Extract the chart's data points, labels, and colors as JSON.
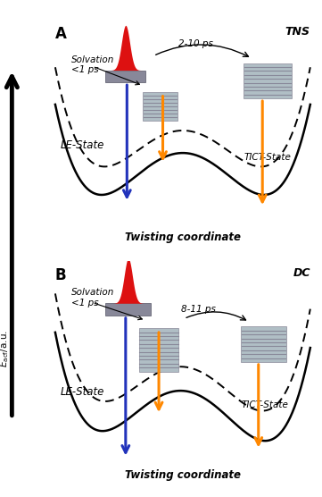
{
  "bg_color": "#6ab4d4",
  "outer_bg": "#ffffff",
  "title_A": "A",
  "title_B": "B",
  "label_TNS": "TNS",
  "label_DC": "DC",
  "label_LE": "LE-State",
  "label_TICT": "TICT-State",
  "label_solvation_A": "Solvation\n<1 ps",
  "label_solvation_B": "Solvation\n<1 ps",
  "label_time_A": "2-10 ps",
  "label_time_B": "8-11 ps",
  "xlabel": "Twisting coordinate",
  "ylabel": "E_acf/a.u.",
  "arrow_blue_color": "#2233bb",
  "arrow_orange_color": "#ff8800"
}
